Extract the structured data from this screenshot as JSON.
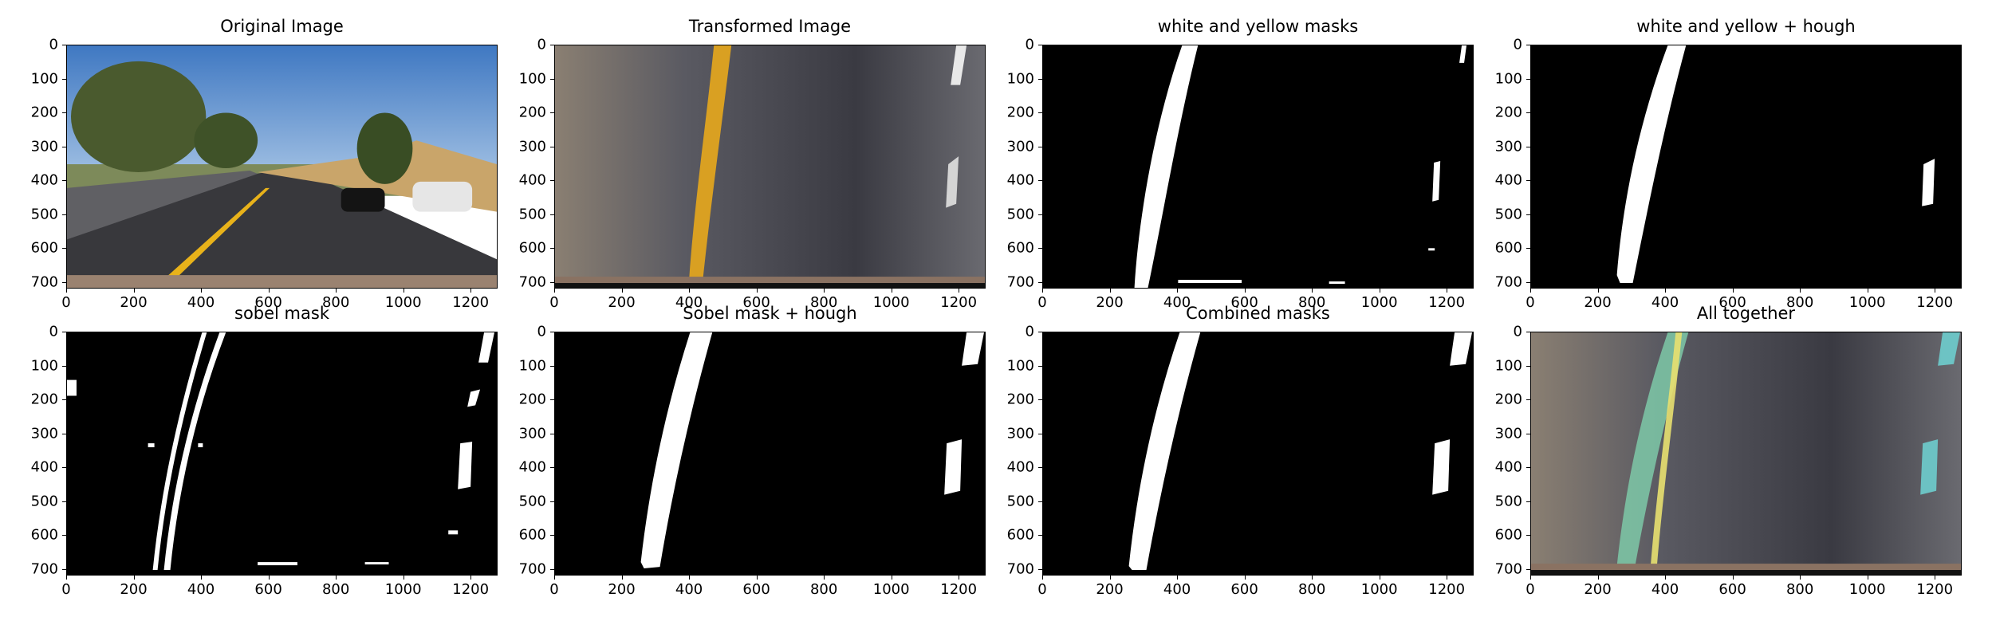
{
  "panels": [
    {
      "id": "original",
      "title": "Original Image",
      "image": "road-photo"
    },
    {
      "id": "transformed",
      "title": "Transformed Image",
      "image": "birdseye-road"
    },
    {
      "id": "wy",
      "title": "white and yellow masks",
      "image": "binary-mask"
    },
    {
      "id": "wyh",
      "title": "white and yellow + hough",
      "image": "binary-mask"
    },
    {
      "id": "sobel",
      "title": "sobel mask",
      "image": "binary-mask"
    },
    {
      "id": "sobelh",
      "title": "Sobel mask + hough",
      "image": "binary-mask"
    },
    {
      "id": "combined",
      "title": "Combined masks",
      "image": "binary-mask"
    },
    {
      "id": "all",
      "title": "All together",
      "image": "birdseye-road-overlay"
    }
  ],
  "axes": {
    "yticks": [
      "0",
      "100",
      "200",
      "300",
      "400",
      "500",
      "600",
      "700"
    ],
    "xticks": [
      "0",
      "200",
      "400",
      "600",
      "800",
      "1000",
      "1200"
    ],
    "xlim": [
      0,
      1280
    ],
    "ylim": [
      720,
      0
    ]
  },
  "colors": {
    "sky": "#5f8fc7",
    "road": "#2f2f33",
    "lane_yellow": "#e0a51c",
    "lane_fill": "#8fd4b4",
    "mask_white": "#ffffff",
    "mask_black": "#000000"
  }
}
